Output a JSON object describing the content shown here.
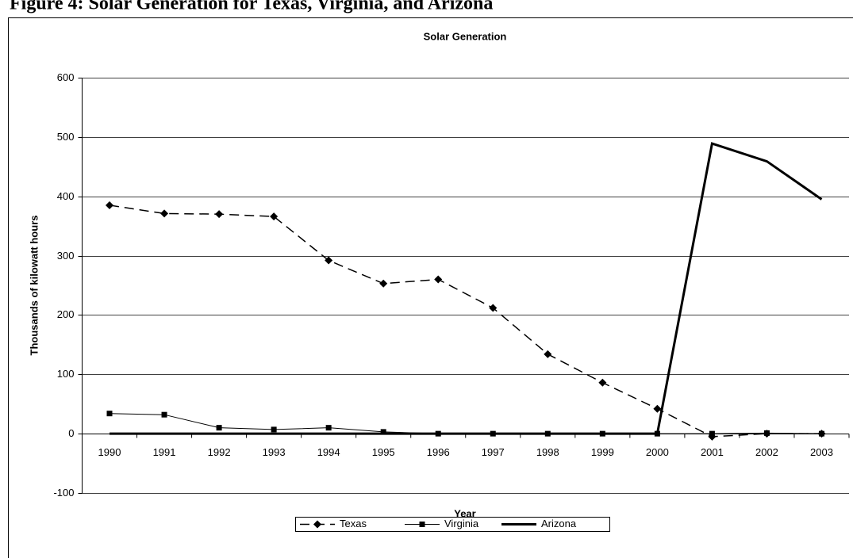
{
  "caption": "Figure 4: Solar Generation for Texas, Virginia, and Arizona",
  "chart_data": {
    "type": "line",
    "title": "Solar Generation",
    "x_label": "Year",
    "y_label": "Thousands of kilowatt hours",
    "categories": [
      "1990",
      "1991",
      "1992",
      "1993",
      "1994",
      "1995",
      "1996",
      "1997",
      "1998",
      "1999",
      "2000",
      "2001",
      "2002",
      "2003"
    ],
    "series": [
      {
        "name": "Texas",
        "color": "#000000",
        "dash": "dashed",
        "marker": "diamond",
        "width": 1.5,
        "values": [
          385,
          371,
          370,
          366,
          292,
          253,
          260,
          212,
          134,
          86,
          42,
          -5,
          0,
          0
        ]
      },
      {
        "name": "Virginia",
        "color": "#000000",
        "dash": "solid",
        "marker": "square",
        "width": 1,
        "values": [
          34,
          32,
          10,
          7,
          10,
          3,
          0,
          0,
          0,
          0,
          0,
          0,
          1,
          0
        ]
      },
      {
        "name": "Arizona",
        "color": "#000000",
        "dash": "solid",
        "marker": "none",
        "width": 3,
        "values": [
          0,
          0,
          0,
          0,
          0,
          0,
          0,
          0,
          0,
          0,
          0,
          489,
          459,
          395
        ]
      }
    ],
    "ylim": [
      -100,
      600
    ],
    "yticks": [
      -100,
      0,
      100,
      200,
      300,
      400,
      500,
      600
    ],
    "grid": true,
    "legend": "bottom"
  }
}
